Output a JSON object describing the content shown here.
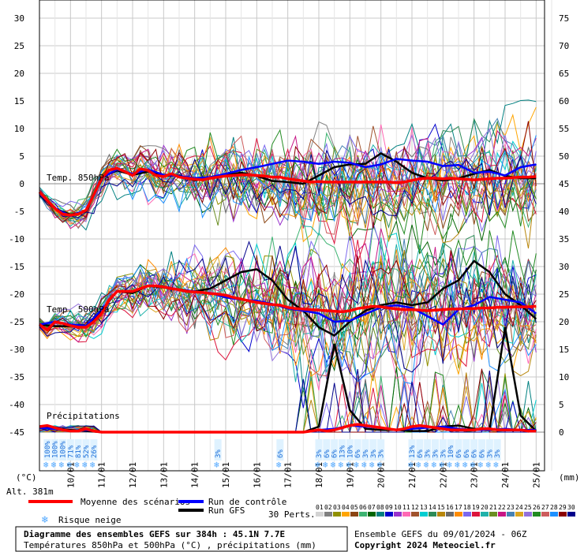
{
  "chart_data": {
    "type": "line",
    "title": "Diagramme des ensembles GEFS sur 384h : 45.1N 7.7E",
    "subtitle": "Températures 850hPa et 500hPa (°C) , précipitations (mm)",
    "left_axis_unit": "(°C)",
    "right_axis_unit": "(mm)",
    "left_ticks": [
      "30",
      "25",
      "20",
      "15",
      "10",
      "5",
      "0",
      "-5",
      "-10",
      "-15",
      "-20",
      "-25",
      "-30",
      "-35",
      "-40",
      "-45"
    ],
    "right_ticks": [
      "75",
      "70",
      "65",
      "60",
      "55",
      "50",
      "45",
      "40",
      "35",
      "30",
      "25",
      "20",
      "15",
      "10",
      "5",
      "0"
    ],
    "ylim": [
      -45,
      30
    ],
    "date_labels": [
      "10/01",
      "11/01",
      "12/01",
      "13/01",
      "14/01",
      "15/01",
      "16/01",
      "17/01",
      "18/01",
      "19/01",
      "20/01",
      "21/01",
      "22/01",
      "23/01",
      "24/01",
      "25/01"
    ],
    "x_range_hours": [
      0,
      384
    ],
    "labels": {
      "t850": "Temp. 850hPa",
      "t500": "Temp. 500hPa",
      "precip": "Précipitations",
      "altitude": "Alt. 381m"
    },
    "series": [
      {
        "name": "Moyenne des scénarios",
        "color": "#ff0000",
        "x": [
          0,
          6,
          12,
          18,
          24,
          30,
          36,
          42,
          48,
          54,
          60,
          66,
          72,
          78,
          84,
          90,
          96,
          102,
          108,
          114,
          120,
          126,
          132,
          138,
          144,
          150,
          156,
          162,
          168,
          174,
          180,
          186,
          192,
          198,
          204,
          210,
          216,
          222,
          228,
          234,
          240,
          246,
          252,
          258,
          264,
          270,
          276,
          282,
          288,
          294,
          300,
          306,
          312,
          318,
          324,
          330,
          336,
          342,
          348,
          354,
          360,
          366,
          372,
          378,
          384
        ],
        "t850": [
          -1.5,
          -3,
          -4.5,
          -5.5,
          -5.7,
          -5.5,
          -4.8,
          -2,
          1,
          2.5,
          2.8,
          2.2,
          1.5,
          2.7,
          2.4,
          1.5,
          1.3,
          1.8,
          1.2,
          1.0,
          0.8,
          0.7,
          1.0,
          1.2,
          1.4,
          1.5,
          1.6,
          1.6,
          1.5,
          1.4,
          1.2,
          1.2,
          0.9,
          0.7,
          0.5,
          0.3,
          0.4,
          0.3,
          0.3,
          0.3,
          0.3,
          0.3,
          0.3,
          0.3,
          0.3,
          0.3,
          0.2,
          0.3,
          0.6,
          0.9,
          1.0,
          1.0,
          0.9,
          1.0,
          0.9,
          0.8,
          0.7,
          0.8,
          0.9,
          1.0,
          1.0,
          1.1,
          1.2,
          1.2,
          1.3
        ],
        "t500": [
          -25.5,
          -26.5,
          -25,
          -25.3,
          -25.7,
          -26,
          -26,
          -25,
          -23.5,
          -21,
          -19.5,
          -19.5,
          -19.5,
          -19,
          -18.5,
          -18.5,
          -18.7,
          -19,
          -19.2,
          -19.5,
          -19.6,
          -19.7,
          -19.9,
          -20,
          -20.2,
          -20.6,
          -20.9,
          -21.2,
          -21.5,
          -21.7,
          -21.9,
          -22,
          -22.4,
          -22.6,
          -22.7,
          -22.8,
          -22.9,
          -23.0,
          -23.1,
          -23.2,
          -23.0,
          -22.6,
          -22.4,
          -22.2,
          -22.3,
          -22.5,
          -22.7,
          -22.8,
          -22.8,
          -22.9,
          -23.0,
          -22.9,
          -22.8,
          -22.7,
          -22.7,
          -22.6,
          -22.6,
          -22.5,
          -22.5,
          -22.4,
          -22.4,
          -22.3,
          -22.3,
          -22.3,
          -22.2
        ],
        "precip": [
          0.5,
          0.6,
          0.4,
          0.2,
          0.1,
          0.1,
          0.3,
          0.1,
          0,
          0,
          0,
          0,
          0,
          0,
          0,
          0,
          0,
          0,
          0,
          0,
          0,
          0,
          0,
          0,
          0,
          0,
          0,
          0,
          0,
          0,
          0,
          0,
          0,
          0,
          0,
          0.1,
          0.2,
          0.1,
          0.2,
          0.4,
          0.6,
          0.7,
          0.6,
          0.5,
          0.4,
          0.3,
          0.2,
          0.3,
          0.5,
          0.6,
          0.5,
          0.4,
          0.3,
          0.2,
          0.2,
          0.2,
          0.2,
          0.3,
          0.3,
          0.2,
          0.2,
          0.2,
          0.2,
          0.1,
          0.1
        ]
      },
      {
        "name": "Run de contrôle",
        "color": "#0000ff",
        "x": [
          0,
          12,
          24,
          36,
          48,
          60,
          72,
          84,
          96,
          108,
          120,
          132,
          144,
          156,
          168,
          180,
          192,
          204,
          216,
          228,
          240,
          252,
          264,
          276,
          288,
          300,
          312,
          324,
          336,
          348,
          360,
          372,
          384
        ],
        "t850": [
          -1.8,
          -4.5,
          -5.8,
          -4.8,
          1,
          2.6,
          1.8,
          2.6,
          1.6,
          1.4,
          1.0,
          1.2,
          1.8,
          2.5,
          3.0,
          3.6,
          4.2,
          4.0,
          3.6,
          4.0,
          3.8,
          3.0,
          3.5,
          4.5,
          4.2,
          4.0,
          3.2,
          3.4,
          2.0,
          2.2,
          1.5,
          3.0,
          3.5
        ],
        "t500": [
          -25.5,
          -25,
          -25.5,
          -25.8,
          -22.8,
          -19.5,
          -19.5,
          -18.5,
          -18.6,
          -19.2,
          -19.5,
          -19.8,
          -20.6,
          -21.0,
          -21.2,
          -21.8,
          -22.6,
          -23.0,
          -23.5,
          -25.0,
          -24.8,
          -23.6,
          -22.4,
          -22.0,
          -22.5,
          -24.0,
          -25.5,
          -22.8,
          -22.0,
          -20.5,
          -21.0,
          -21.5,
          -23.5
        ],
        "precip": [
          0.4,
          0.3,
          0.1,
          0.2,
          0,
          0,
          0,
          0,
          0,
          0,
          0,
          0,
          0,
          0,
          0,
          0,
          0,
          0,
          0.2,
          0.3,
          0.6,
          0.5,
          0.4,
          0.2,
          0.3,
          0.4,
          0.5,
          0.3,
          0.2,
          0.2,
          0.3,
          0.2,
          0.2
        ]
      },
      {
        "name": "Run GFS",
        "color": "#000000",
        "x": [
          0,
          12,
          24,
          36,
          48,
          60,
          72,
          84,
          96,
          108,
          120,
          132,
          144,
          156,
          168,
          180,
          192,
          204,
          216,
          228,
          240,
          252,
          264,
          276,
          288,
          300,
          312,
          324,
          336,
          348,
          360,
          372,
          384
        ],
        "t850": [
          -2,
          -4.5,
          -5.6,
          -5,
          1.2,
          2.4,
          1.6,
          2.2,
          1.4,
          1.5,
          0.6,
          1.0,
          1.6,
          2.0,
          1.4,
          0.5,
          0.3,
          0,
          1.5,
          3.0,
          3.5,
          3.6,
          5.5,
          4.0,
          2.0,
          1.0,
          0.6,
          1.0,
          1.8,
          2.5,
          1.4,
          1.0,
          1.0
        ],
        "t500": [
          -25.5,
          -25.8,
          -25.8,
          -26,
          -23,
          -19.5,
          -19.8,
          -18.5,
          -18.8,
          -19.2,
          -19.5,
          -19.0,
          -17.5,
          -16.0,
          -15.5,
          -17.5,
          -21,
          -23,
          -26,
          -27.5,
          -25.0,
          -23.0,
          -22.0,
          -21.5,
          -22.0,
          -21.5,
          -19.0,
          -17.5,
          -14.0,
          -16.0,
          -20.0,
          -22.0,
          -24.5
        ],
        "precip": [
          0.5,
          0.3,
          0.2,
          0.1,
          0,
          0,
          0,
          0,
          0,
          0,
          0,
          0,
          0,
          0,
          0,
          0,
          0,
          0,
          0.5,
          8.0,
          2.0,
          0.3,
          0.2,
          0.2,
          0.1,
          0.1,
          0.5,
          0.6,
          0.3,
          0.2,
          9.5,
          1.5,
          0.1
        ]
      }
    ],
    "perturbation_colors": [
      "#d3d3d3",
      "#808080",
      "#909000",
      "#ffa500",
      "#8b4513",
      "#3cb371",
      "#006400",
      "#008080",
      "#0000cd",
      "#9932cc",
      "#ff69b4",
      "#a0522d",
      "#00ced1",
      "#2e8b57",
      "#b8860b",
      "#696969",
      "#ff8c00",
      "#7b68ee",
      "#dc143c",
      "#20b2aa",
      "#6b8e23",
      "#c71585",
      "#4682b4",
      "#daa520",
      "#9370db",
      "#228b22",
      "#cd5c5c",
      "#1e90ff",
      "#8b0000",
      "#00008b"
    ],
    "snow_risk": [
      {
        "hour": 6,
        "pct": "100%"
      },
      {
        "hour": 12,
        "pct": "100%"
      },
      {
        "hour": 18,
        "pct": "100%"
      },
      {
        "hour": 24,
        "pct": "71%"
      },
      {
        "hour": 30,
        "pct": "81%"
      },
      {
        "hour": 36,
        "pct": "52%"
      },
      {
        "hour": 42,
        "pct": "26%"
      },
      {
        "hour": 138,
        "pct": "3%"
      },
      {
        "hour": 186,
        "pct": "6%"
      },
      {
        "hour": 216,
        "pct": "3%"
      },
      {
        "hour": 222,
        "pct": "6%"
      },
      {
        "hour": 228,
        "pct": "6%"
      },
      {
        "hour": 234,
        "pct": "13%"
      },
      {
        "hour": 240,
        "pct": "10%"
      },
      {
        "hour": 246,
        "pct": "6%"
      },
      {
        "hour": 252,
        "pct": "3%"
      },
      {
        "hour": 258,
        "pct": "3%"
      },
      {
        "hour": 264,
        "pct": "3%"
      },
      {
        "hour": 288,
        "pct": "13%"
      },
      {
        "hour": 294,
        "pct": "6%"
      },
      {
        "hour": 300,
        "pct": "3%"
      },
      {
        "hour": 306,
        "pct": "3%"
      },
      {
        "hour": 312,
        "pct": "3%"
      },
      {
        "hour": 318,
        "pct": "10%"
      },
      {
        "hour": 324,
        "pct": "6%"
      },
      {
        "hour": 330,
        "pct": "6%"
      },
      {
        "hour": 336,
        "pct": "6%"
      },
      {
        "hour": 342,
        "pct": "6%"
      },
      {
        "hour": 348,
        "pct": "3%"
      },
      {
        "hour": 354,
        "pct": "3%"
      }
    ]
  },
  "legend": {
    "mean": "Moyenne des scénarios",
    "control": "Run de contrôle",
    "gfs": "Run GFS",
    "snow": "Risque neige",
    "perts": "30 Perts.",
    "pert_numbers": [
      "01",
      "02",
      "03",
      "04",
      "05",
      "06",
      "07",
      "08",
      "09",
      "10",
      "11",
      "12",
      "13",
      "14",
      "15",
      "16",
      "17",
      "18",
      "19",
      "20",
      "21",
      "22",
      "23",
      "24",
      "25",
      "26",
      "27",
      "28",
      "29",
      "30"
    ]
  },
  "footer": {
    "title": "Diagramme des ensembles GEFS sur 384h : 45.1N 7.7E",
    "subtitle": "Températures 850hPa et 500hPa (°C) , précipitations (mm)",
    "ensemble": "Ensemble GEFS du 09/01/2024 - 06Z",
    "copyright": "Copyright 2024 Meteociel.fr"
  }
}
